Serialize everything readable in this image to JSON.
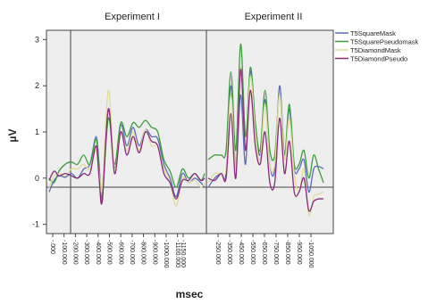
{
  "chart_data": {
    "type": "line",
    "panels": [
      {
        "title": "Experiment I",
        "xlim": [
          -80,
          1180
        ]
      },
      {
        "title": "Experiment II",
        "xlim": [
          -80,
          1000
        ]
      }
    ],
    "xlabel": "msec",
    "ylabel": "µV",
    "ylim": [
      -1.2,
      3.2
    ],
    "yticks": [
      -1,
      0,
      1,
      2,
      3
    ],
    "xticks": [
      {
        "panel": 0,
        "labels": [
          "-.000",
          "-100.000",
          "-200.000",
          "-300.000",
          "-400.000",
          "-500.000",
          "-600.000",
          "-700.000",
          "-800.000",
          "-900.000",
          "-1000.000",
          "-1100.000",
          "-1150.000"
        ],
        "values": [
          0,
          100,
          200,
          300,
          400,
          500,
          600,
          700,
          800,
          900,
          1000,
          1100,
          1150
        ]
      },
      {
        "panel": 1,
        "labels": [
          "-250.000",
          "-350.000",
          "-450.000",
          "-550.000",
          "-650.000",
          "-750.000",
          "-850.000",
          "-950.000",
          "-1050.000"
        ],
        "values": [
          250,
          350,
          450,
          550,
          650,
          750,
          850,
          950,
          1050
        ]
      }
    ],
    "grid": false,
    "legend_position": "top-right",
    "series": [
      {
        "name": "T5SquareMask",
        "color": "#5a6bb8",
        "panel1": [
          [
            -80,
            -0.3
          ],
          [
            -40,
            -0.05
          ],
          [
            0,
            0.05
          ],
          [
            50,
            0.02
          ],
          [
            100,
            0.1
          ],
          [
            150,
            0.0
          ],
          [
            200,
            0.2
          ],
          [
            250,
            0.3
          ],
          [
            300,
            0.9
          ],
          [
            325,
            0.3
          ],
          [
            350,
            -0.5
          ],
          [
            400,
            1.5
          ],
          [
            450,
            0.2
          ],
          [
            500,
            1.15
          ],
          [
            550,
            0.7
          ],
          [
            600,
            1.1
          ],
          [
            650,
            0.7
          ],
          [
            700,
            1.05
          ],
          [
            750,
            0.9
          ],
          [
            800,
            0.85
          ],
          [
            850,
            0.3
          ],
          [
            900,
            0.0
          ],
          [
            950,
            -0.4
          ],
          [
            1000,
            0.1
          ],
          [
            1050,
            -0.1
          ],
          [
            1100,
            0.0
          ],
          [
            1150,
            -0.1
          ],
          [
            1180,
            -0.2
          ]
        ],
        "panel2": [
          [
            -80,
            -0.2
          ],
          [
            -40,
            0.0
          ],
          [
            0,
            0.1
          ],
          [
            30,
            0.1
          ],
          [
            60,
            2.0
          ],
          [
            90,
            0.2
          ],
          [
            120,
            1.8
          ],
          [
            150,
            0.3
          ],
          [
            180,
            2.3
          ],
          [
            210,
            1.2
          ],
          [
            240,
            0.5
          ],
          [
            270,
            1.7
          ],
          [
            300,
            0.3
          ],
          [
            330,
            0.2
          ],
          [
            360,
            2.0
          ],
          [
            390,
            0.5
          ],
          [
            420,
            1.5
          ],
          [
            450,
            0.2
          ],
          [
            480,
            0.2
          ],
          [
            510,
            0.4
          ],
          [
            540,
            -0.3
          ],
          [
            570,
            0.2
          ],
          [
            600,
            0.25
          ],
          [
            630,
            0.2
          ]
        ]
      },
      {
        "name": "T5SquarePseudomask",
        "color": "#3a9d3a",
        "panel1": [
          [
            -80,
            0.0
          ],
          [
            -40,
            -0.1
          ],
          [
            0,
            0.15
          ],
          [
            50,
            0.3
          ],
          [
            100,
            0.35
          ],
          [
            150,
            0.3
          ],
          [
            200,
            0.5
          ],
          [
            250,
            0.3
          ],
          [
            300,
            0.85
          ],
          [
            325,
            0.2
          ],
          [
            350,
            -0.4
          ],
          [
            400,
            1.3
          ],
          [
            450,
            0.3
          ],
          [
            500,
            1.2
          ],
          [
            550,
            0.9
          ],
          [
            600,
            1.2
          ],
          [
            650,
            1.1
          ],
          [
            700,
            1.25
          ],
          [
            750,
            1.1
          ],
          [
            800,
            1.0
          ],
          [
            850,
            0.4
          ],
          [
            900,
            0.15
          ],
          [
            950,
            -0.2
          ],
          [
            1000,
            0.2
          ],
          [
            1050,
            0.0
          ],
          [
            1100,
            0.1
          ],
          [
            1150,
            -0.05
          ],
          [
            1180,
            0.1
          ]
        ],
        "panel2": [
          [
            -80,
            0.4
          ],
          [
            -40,
            0.5
          ],
          [
            0,
            0.5
          ],
          [
            30,
            0.6
          ],
          [
            60,
            2.3
          ],
          [
            90,
            0.6
          ],
          [
            120,
            2.9
          ],
          [
            150,
            0.9
          ],
          [
            180,
            2.4
          ],
          [
            210,
            1.2
          ],
          [
            240,
            0.6
          ],
          [
            270,
            1.9
          ],
          [
            300,
            0.6
          ],
          [
            330,
            0.5
          ],
          [
            360,
            1.8
          ],
          [
            390,
            0.5
          ],
          [
            420,
            1.6
          ],
          [
            450,
            0.3
          ],
          [
            480,
            0.3
          ],
          [
            510,
            0.6
          ],
          [
            540,
            0.0
          ],
          [
            570,
            0.5
          ],
          [
            600,
            0.2
          ],
          [
            630,
            -0.1
          ]
        ]
      },
      {
        "name": "T5DiamondMask",
        "color": "#e0dc9a",
        "panel1": [
          [
            -80,
            -0.2
          ],
          [
            -40,
            0.05
          ],
          [
            0,
            0.1
          ],
          [
            50,
            0.05
          ],
          [
            100,
            0.2
          ],
          [
            150,
            0.2
          ],
          [
            200,
            0.3
          ],
          [
            250,
            0.2
          ],
          [
            300,
            0.6
          ],
          [
            325,
            0.1
          ],
          [
            350,
            -0.2
          ],
          [
            400,
            1.9
          ],
          [
            450,
            0.2
          ],
          [
            500,
            1.0
          ],
          [
            550,
            0.6
          ],
          [
            600,
            1.0
          ],
          [
            650,
            0.6
          ],
          [
            700,
            1.05
          ],
          [
            750,
            0.7
          ],
          [
            800,
            0.7
          ],
          [
            850,
            0.2
          ],
          [
            900,
            -0.1
          ],
          [
            950,
            -0.6
          ],
          [
            1000,
            0.0
          ],
          [
            1050,
            -0.1
          ],
          [
            1100,
            -0.05
          ],
          [
            1150,
            -0.2
          ],
          [
            1180,
            -0.1
          ]
        ],
        "panel2": [
          [
            -80,
            -0.1
          ],
          [
            -40,
            0.1
          ],
          [
            0,
            0.1
          ],
          [
            30,
            0.2
          ],
          [
            60,
            1.8
          ],
          [
            90,
            0.2
          ],
          [
            120,
            2.4
          ],
          [
            150,
            0.6
          ],
          [
            180,
            2.2
          ],
          [
            210,
            1.0
          ],
          [
            240,
            0.4
          ],
          [
            270,
            1.6
          ],
          [
            300,
            0.3
          ],
          [
            330,
            0.3
          ],
          [
            360,
            1.8
          ],
          [
            390,
            0.4
          ],
          [
            420,
            1.3
          ],
          [
            450,
            0.1
          ],
          [
            480,
            -0.3
          ],
          [
            510,
            0.2
          ],
          [
            540,
            -0.8
          ],
          [
            570,
            -0.4
          ],
          [
            600,
            -0.35
          ],
          [
            630,
            -0.3
          ]
        ]
      },
      {
        "name": "T5DiamondPseudo",
        "color": "#8a2a7a",
        "panel1": [
          [
            -80,
            -0.05
          ],
          [
            -40,
            0.15
          ],
          [
            0,
            0.05
          ],
          [
            50,
            0.1
          ],
          [
            100,
            0.05
          ],
          [
            150,
            0.0
          ],
          [
            200,
            0.1
          ],
          [
            250,
            0.1
          ],
          [
            300,
            0.7
          ],
          [
            325,
            0.0
          ],
          [
            350,
            -0.5
          ],
          [
            400,
            1.5
          ],
          [
            450,
            0.1
          ],
          [
            500,
            1.0
          ],
          [
            550,
            0.5
          ],
          [
            600,
            0.9
          ],
          [
            650,
            0.55
          ],
          [
            700,
            1.0
          ],
          [
            750,
            0.8
          ],
          [
            800,
            0.7
          ],
          [
            850,
            0.1
          ],
          [
            900,
            -0.1
          ],
          [
            950,
            -0.45
          ],
          [
            1000,
            -0.05
          ],
          [
            1050,
            -0.05
          ],
          [
            1100,
            0.1
          ],
          [
            1150,
            -0.05
          ],
          [
            1180,
            0.0
          ]
        ],
        "panel2": [
          [
            -80,
            0.0
          ],
          [
            -40,
            -0.05
          ],
          [
            0,
            0.1
          ],
          [
            30,
            0.0
          ],
          [
            60,
            1.4
          ],
          [
            90,
            0.0
          ],
          [
            120,
            2.35
          ],
          [
            150,
            0.6
          ],
          [
            180,
            1.9
          ],
          [
            210,
            0.7
          ],
          [
            240,
            0.3
          ],
          [
            270,
            1.0
          ],
          [
            300,
            -0.1
          ],
          [
            330,
            -0.1
          ],
          [
            360,
            1.3
          ],
          [
            390,
            0.1
          ],
          [
            420,
            0.8
          ],
          [
            450,
            -0.3
          ],
          [
            480,
            -0.3
          ],
          [
            510,
            0.0
          ],
          [
            540,
            -0.7
          ],
          [
            570,
            -0.5
          ],
          [
            600,
            -0.45
          ],
          [
            630,
            -0.45
          ]
        ]
      }
    ]
  }
}
